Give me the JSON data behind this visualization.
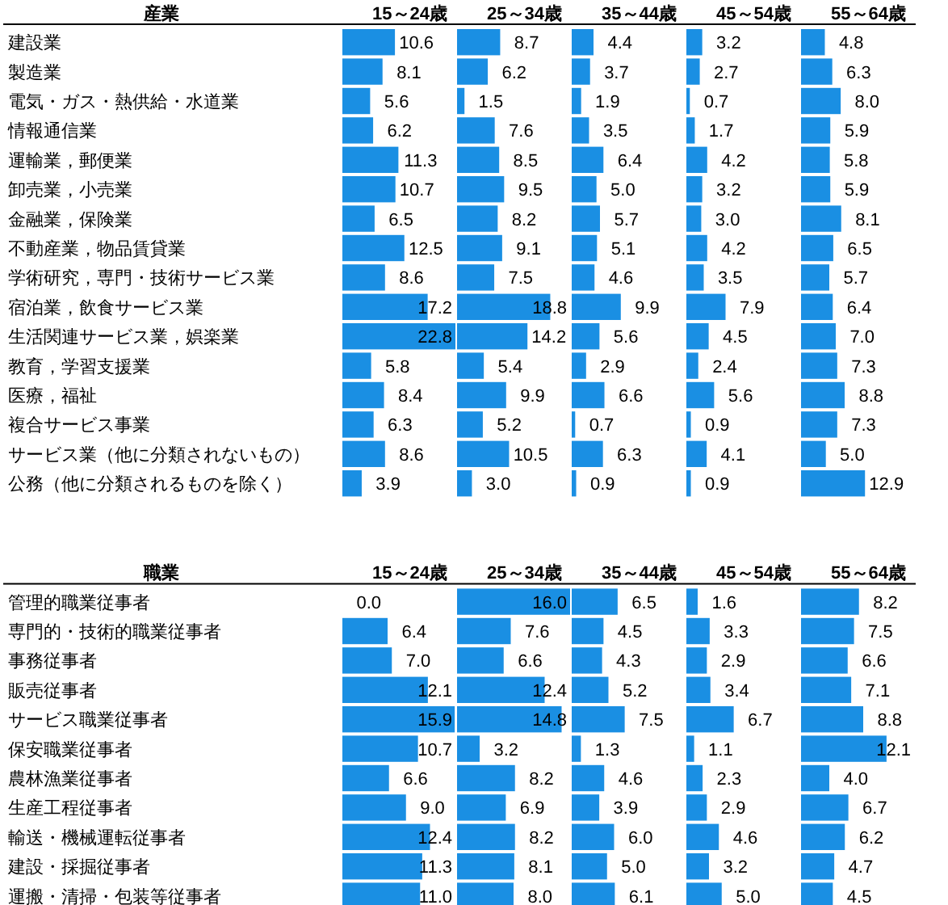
{
  "chart_data": [
    {
      "type": "bar",
      "orientation": "horizontal",
      "title": "15～24歳",
      "ylabel": "産業",
      "tick_labels": "y",
      "categories": [
        "建設業",
        "製造業",
        "電気・ガス・熱供給・水道業",
        "情報通信業",
        "運輸業，郵便業",
        "卸売業，小売業",
        "金融業，保険業",
        "不動産業，物品賃貸業",
        "学術研究，専門・技術サービス業",
        "宿泊業，飲食サービス業",
        "生活関連サービス業，娯楽業",
        "教育，学習支援業",
        "医療，福祉",
        "複合サービス事業",
        "サービス業（他に分類されないもの）",
        "公務（他に分類されるものを除く）"
      ],
      "color": "#1a8fe3",
      "values": [
        10.6,
        8.1,
        5.6,
        6.2,
        11.3,
        10.7,
        6.5,
        12.5,
        8.6,
        17.2,
        22.8,
        5.8,
        8.4,
        6.3,
        8.6,
        3.9
      ],
      "value_labels": [
        "10.6",
        "8.1",
        "5.6",
        "6.2",
        "11.3",
        "10.7",
        "6.5",
        "12.5",
        "8.6",
        "17.2",
        "22.8",
        "5.8",
        "8.4",
        "6.3",
        "8.6",
        "3.9"
      ]
    },
    {
      "type": "bar",
      "orientation": "horizontal",
      "title": "25～34歳",
      "tick_labels": false,
      "categories": [
        "建設業",
        "製造業",
        "電気・ガス・熱供給・水道業",
        "情報通信業",
        "運輸業，郵便業",
        "卸売業，小売業",
        "金融業，保険業",
        "不動産業，物品賃貸業",
        "学術研究，専門・技術サービス業",
        "宿泊業，飲食サービス業",
        "生活関連サービス業，娯楽業",
        "教育，学習支援業",
        "医療，福祉",
        "複合サービス事業",
        "サービス業（他に分類されないもの）",
        "公務（他に分類されるものを除く）"
      ],
      "color": "#1a8fe3",
      "values": [
        8.7,
        6.2,
        1.5,
        7.6,
        8.5,
        9.5,
        8.2,
        9.1,
        7.5,
        18.8,
        14.2,
        5.4,
        9.9,
        5.2,
        10.5,
        3.0
      ],
      "value_labels": [
        "8.7",
        "6.2",
        "1.5",
        "7.6",
        "8.5",
        "9.5",
        "8.2",
        "9.1",
        "7.5",
        "18.8",
        "14.2",
        "5.4",
        "9.9",
        "5.2",
        "10.5",
        "3.0"
      ]
    },
    {
      "type": "bar",
      "orientation": "horizontal",
      "title": "35～44歳",
      "tick_labels": false,
      "categories": [
        "建設業",
        "製造業",
        "電気・ガス・熱供給・水道業",
        "情報通信業",
        "運輸業，郵便業",
        "卸売業，小売業",
        "金融業，保険業",
        "不動産業，物品賃貸業",
        "学術研究，専門・技術サービス業",
        "宿泊業，飲食サービス業",
        "生活関連サービス業，娯楽業",
        "教育，学習支援業",
        "医療，福祉",
        "複合サービス事業",
        "サービス業（他に分類されないもの）",
        "公務（他に分類されるものを除く）"
      ],
      "color": "#1a8fe3",
      "values": [
        4.4,
        3.7,
        1.9,
        3.5,
        6.4,
        5.0,
        5.7,
        5.1,
        4.6,
        9.9,
        5.6,
        2.9,
        6.6,
        0.7,
        6.3,
        0.9
      ],
      "value_labels": [
        "4.4",
        "3.7",
        "1.9",
        "3.5",
        "6.4",
        "5.0",
        "5.7",
        "5.1",
        "4.6",
        "9.9",
        "5.6",
        "2.9",
        "6.6",
        "0.7",
        "6.3",
        "0.9"
      ]
    },
    {
      "type": "bar",
      "orientation": "horizontal",
      "title": "45～54歳",
      "tick_labels": false,
      "categories": [
        "建設業",
        "製造業",
        "電気・ガス・熱供給・水道業",
        "情報通信業",
        "運輸業，郵便業",
        "卸売業，小売業",
        "金融業，保険業",
        "不動産業，物品賃貸業",
        "学術研究，専門・技術サービス業",
        "宿泊業，飲食サービス業",
        "生活関連サービス業，娯楽業",
        "教育，学習支援業",
        "医療，福祉",
        "複合サービス事業",
        "サービス業（他に分類されないもの）",
        "公務（他に分類されるものを除く）"
      ],
      "color": "#1a8fe3",
      "values": [
        3.2,
        2.7,
        0.7,
        1.7,
        4.2,
        3.2,
        3.0,
        4.2,
        3.5,
        7.9,
        4.5,
        2.4,
        5.6,
        0.9,
        4.1,
        0.9
      ],
      "value_labels": [
        "3.2",
        "2.7",
        "0.7",
        "1.7",
        "4.2",
        "3.2",
        "3.0",
        "4.2",
        "3.5",
        "7.9",
        "4.5",
        "2.4",
        "5.6",
        "0.9",
        "4.1",
        "0.9"
      ]
    },
    {
      "type": "bar",
      "orientation": "horizontal",
      "title": "55～64歳",
      "tick_labels": false,
      "categories": [
        "建設業",
        "製造業",
        "電気・ガス・熱供給・水道業",
        "情報通信業",
        "運輸業，郵便業",
        "卸売業，小売業",
        "金融業，保険業",
        "不動産業，物品賃貸業",
        "学術研究，専門・技術サービス業",
        "宿泊業，飲食サービス業",
        "生活関連サービス業，娯楽業",
        "教育，学習支援業",
        "医療，福祉",
        "複合サービス事業",
        "サービス業（他に分類されないもの）",
        "公務（他に分類されるものを除く）"
      ],
      "color": "#1a8fe3",
      "values": [
        4.8,
        6.3,
        8.0,
        5.9,
        5.8,
        5.9,
        8.1,
        6.5,
        5.7,
        6.4,
        7.0,
        7.3,
        8.8,
        7.3,
        5.0,
        12.9
      ],
      "value_labels": [
        "4.8",
        "6.3",
        "8.0",
        "5.9",
        "5.8",
        "5.9",
        "8.1",
        "6.5",
        "5.7",
        "6.4",
        "7.0",
        "7.3",
        "8.8",
        "7.3",
        "5.0",
        "12.9"
      ]
    },
    {
      "type": "bar",
      "orientation": "horizontal",
      "title": "15～24歳",
      "ylabel": "職業",
      "tick_labels": "y",
      "categories": [
        "管理的職業従事者",
        "専門的・技術的職業従事者",
        "事務従事者",
        "販売従事者",
        "サービス職業従事者",
        "保安職業従事者",
        "農林漁業従事者",
        "生産工程従事者",
        "輸送・機械運転従事者",
        "建設・採掘従事者",
        "運搬・清掃・包装等従事者"
      ],
      "color": "#1a8fe3",
      "values": [
        0.0,
        6.4,
        7.0,
        12.1,
        15.9,
        10.7,
        6.6,
        9.0,
        12.4,
        11.3,
        11.0
      ],
      "value_labels": [
        "0.0",
        "6.4",
        "7.0",
        "12.1",
        "15.9",
        "10.7",
        "6.6",
        "9.0",
        "12.4",
        "11.3",
        "11.0"
      ]
    },
    {
      "type": "bar",
      "orientation": "horizontal",
      "title": "25～34歳",
      "tick_labels": false,
      "categories": [
        "管理的職業従事者",
        "専門的・技術的職業従事者",
        "事務従事者",
        "販売従事者",
        "サービス職業従事者",
        "保安職業従事者",
        "農林漁業従事者",
        "生産工程従事者",
        "輸送・機械運転従事者",
        "建設・採掘従事者",
        "運搬・清掃・包装等従事者"
      ],
      "color": "#1a8fe3",
      "values": [
        16.0,
        7.6,
        6.6,
        12.4,
        14.8,
        3.2,
        8.2,
        6.9,
        8.2,
        8.1,
        8.0
      ],
      "value_labels": [
        "16.0",
        "7.6",
        "6.6",
        "12.4",
        "14.8",
        "3.2",
        "8.2",
        "6.9",
        "8.2",
        "8.1",
        "8.0"
      ]
    },
    {
      "type": "bar",
      "orientation": "horizontal",
      "title": "35～44歳",
      "tick_labels": false,
      "categories": [
        "管理的職業従事者",
        "専門的・技術的職業従事者",
        "事務従事者",
        "販売従事者",
        "サービス職業従事者",
        "保安職業従事者",
        "農林漁業従事者",
        "生産工程従事者",
        "輸送・機械運転従事者",
        "建設・採掘従事者",
        "運搬・清掃・包装等従事者"
      ],
      "color": "#1a8fe3",
      "values": [
        6.5,
        4.5,
        4.3,
        5.2,
        7.5,
        1.3,
        4.6,
        3.9,
        6.0,
        5.0,
        6.1
      ],
      "value_labels": [
        "6.5",
        "4.5",
        "4.3",
        "5.2",
        "7.5",
        "1.3",
        "4.6",
        "3.9",
        "6.0",
        "5.0",
        "6.1"
      ]
    },
    {
      "type": "bar",
      "orientation": "horizontal",
      "title": "45～54歳",
      "tick_labels": false,
      "categories": [
        "管理的職業従事者",
        "専門的・技術的職業従事者",
        "事務従事者",
        "販売従事者",
        "サービス職業従事者",
        "保安職業従事者",
        "農林漁業従事者",
        "生産工程従事者",
        "輸送・機械運転従事者",
        "建設・採掘従事者",
        "運搬・清掃・包装等従事者"
      ],
      "color": "#1a8fe3",
      "values": [
        1.6,
        3.3,
        2.9,
        3.4,
        6.7,
        1.1,
        2.3,
        2.9,
        4.6,
        3.2,
        5.0
      ],
      "value_labels": [
        "1.6",
        "3.3",
        "2.9",
        "3.4",
        "6.7",
        "1.1",
        "2.3",
        "2.9",
        "4.6",
        "3.2",
        "5.0"
      ]
    },
    {
      "type": "bar",
      "orientation": "horizontal",
      "title": "55～64歳",
      "tick_labels": false,
      "categories": [
        "管理的職業従事者",
        "専門的・技術的職業従事者",
        "事務従事者",
        "販売従事者",
        "サービス職業従事者",
        "保安職業従事者",
        "農林漁業従事者",
        "生産工程従事者",
        "輸送・機械運転従事者",
        "建設・採掘従事者",
        "運搬・清掃・包装等従事者"
      ],
      "color": "#1a8fe3",
      "values": [
        8.2,
        7.5,
        6.6,
        7.1,
        8.8,
        12.1,
        4.0,
        6.7,
        6.2,
        4.7,
        4.5
      ],
      "value_labels": [
        "8.2",
        "7.5",
        "6.6",
        "7.1",
        "8.8",
        "12.1",
        "4.0",
        "6.7",
        "6.2",
        "4.7",
        "4.5"
      ]
    }
  ]
}
